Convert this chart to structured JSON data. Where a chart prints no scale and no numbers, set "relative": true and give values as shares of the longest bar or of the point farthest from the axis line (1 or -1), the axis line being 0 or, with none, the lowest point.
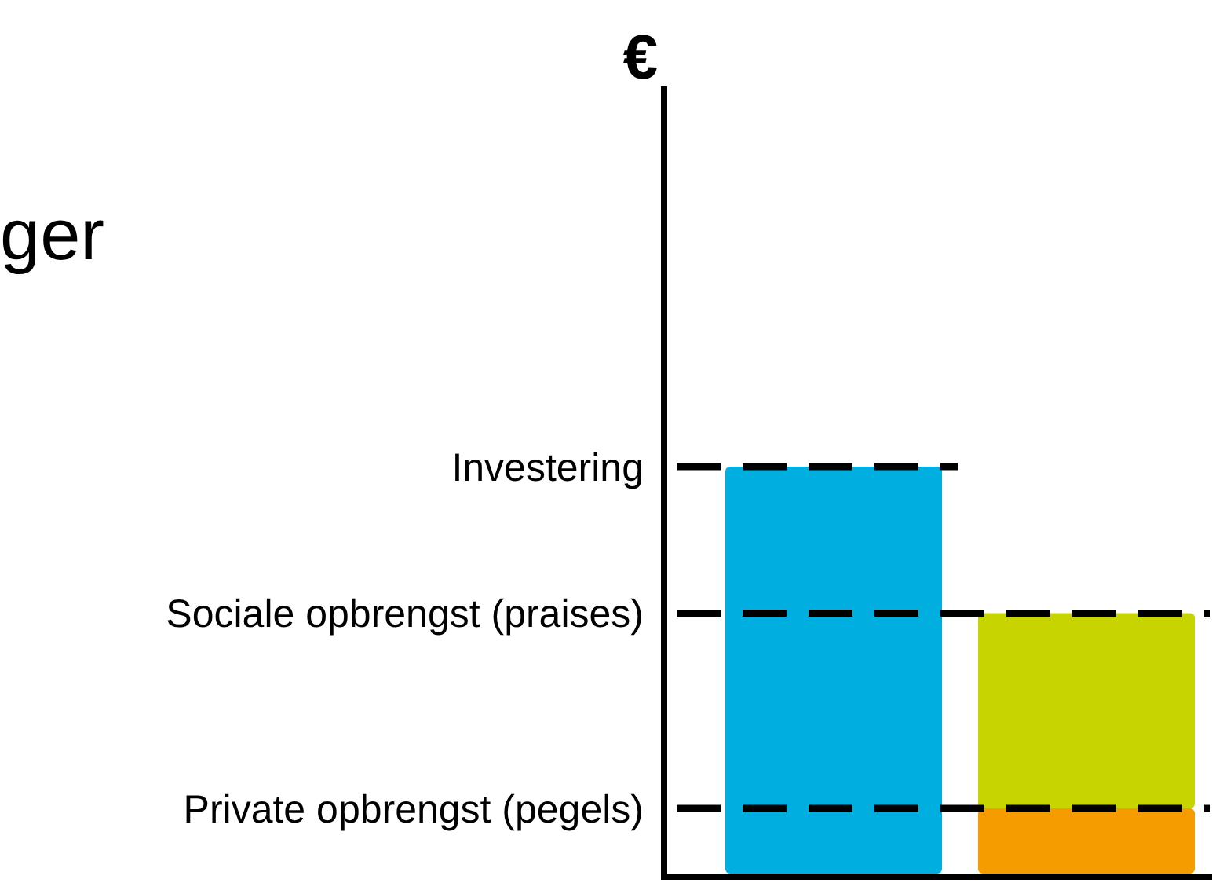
{
  "chart_data": {
    "type": "bar",
    "title": "ger",
    "annotations": [
      "€"
    ],
    "relative": true,
    "stacked": true,
    "categories": [
      null,
      null
    ],
    "series": [
      {
        "color": "#00aee0",
        "values": [
          1,
          null
        ]
      },
      {
        "color": "#f59c00",
        "values": [
          null,
          0.16
        ]
      },
      {
        "color": "#c8d400",
        "values": [
          null,
          0.48
        ]
      }
    ],
    "ref_lines": [
      {
        "axis": "y",
        "value": 1,
        "label": "Investering",
        "color": "#000000",
        "line_style": "dashed"
      },
      {
        "axis": "y",
        "value": 0.64,
        "label": "Sociale opbrengst (praises)",
        "color": "#000000",
        "line_style": "dashed"
      },
      {
        "axis": "y",
        "value": 0.16,
        "label": "Private opbrengst (pegels)",
        "color": "#000000",
        "line_style": "dashed"
      }
    ]
  }
}
